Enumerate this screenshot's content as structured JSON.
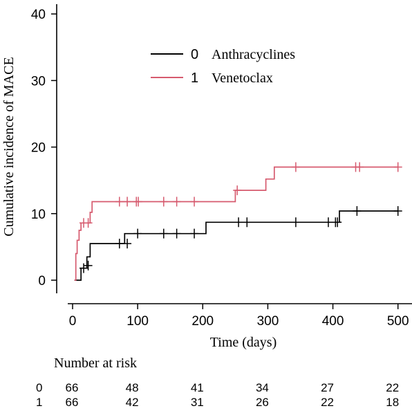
{
  "chart_data": {
    "type": "line",
    "step": true,
    "xlabel": "Time (days)",
    "ylabel": "Cumulative incidence of MACE",
    "xlim": [
      0,
      520
    ],
    "ylim": [
      0,
      42
    ],
    "xticks": [
      0,
      100,
      200,
      300,
      400,
      500
    ],
    "yticks": [
      0,
      10,
      20,
      30,
      40
    ],
    "grid": false,
    "legend": {
      "placement": "top-center"
    },
    "series": [
      {
        "code": "0",
        "name": "Anthracyclines",
        "color": "#000000",
        "steps": [
          [
            3,
            0
          ],
          [
            13,
            1.8
          ],
          [
            22,
            3.5
          ],
          [
            27,
            5.5
          ],
          [
            80,
            7.0
          ],
          [
            205,
            8.7
          ],
          [
            410,
            10.4
          ],
          [
            500,
            10.4
          ]
        ],
        "censors": [
          [
            17,
            1.8
          ],
          [
            24,
            2.2
          ],
          [
            72,
            5.5
          ],
          [
            84,
            5.5
          ],
          [
            100,
            7.0
          ],
          [
            140,
            7.0
          ],
          [
            160,
            7.0
          ],
          [
            187,
            7.0
          ],
          [
            255,
            8.7
          ],
          [
            268,
            8.7
          ],
          [
            343,
            8.7
          ],
          [
            393,
            8.7
          ],
          [
            404,
            8.7
          ],
          [
            407,
            8.7
          ],
          [
            437,
            10.4
          ],
          [
            500,
            10.4
          ]
        ]
      },
      {
        "code": "1",
        "name": "Venetoclax",
        "color": "#d65a6e",
        "steps": [
          [
            3,
            0
          ],
          [
            5,
            4.0
          ],
          [
            7,
            6.0
          ],
          [
            10,
            7.5
          ],
          [
            13,
            8.6
          ],
          [
            27,
            10.2
          ],
          [
            30,
            11.8
          ],
          [
            250,
            13.5
          ],
          [
            297,
            15.2
          ],
          [
            310,
            17.0
          ],
          [
            500,
            17.0
          ]
        ],
        "censors": [
          [
            17,
            8.6
          ],
          [
            24,
            8.6
          ],
          [
            72,
            11.8
          ],
          [
            84,
            11.8
          ],
          [
            98,
            11.8
          ],
          [
            101,
            11.8
          ],
          [
            140,
            11.8
          ],
          [
            160,
            11.8
          ],
          [
            187,
            11.8
          ],
          [
            253,
            13.5
          ],
          [
            343,
            17.0
          ],
          [
            435,
            17.0
          ],
          [
            441,
            17.0
          ],
          [
            500,
            17.0
          ]
        ]
      }
    ]
  },
  "risk_table": {
    "title": "Number at risk",
    "times": [
      0,
      100,
      200,
      300,
      400,
      500
    ],
    "rows": [
      {
        "code": "0",
        "values": [
          "66",
          "48",
          "41",
          "34",
          "27",
          "22"
        ]
      },
      {
        "code": "1",
        "values": [
          "66",
          "42",
          "31",
          "26",
          "22",
          "18"
        ]
      }
    ]
  }
}
